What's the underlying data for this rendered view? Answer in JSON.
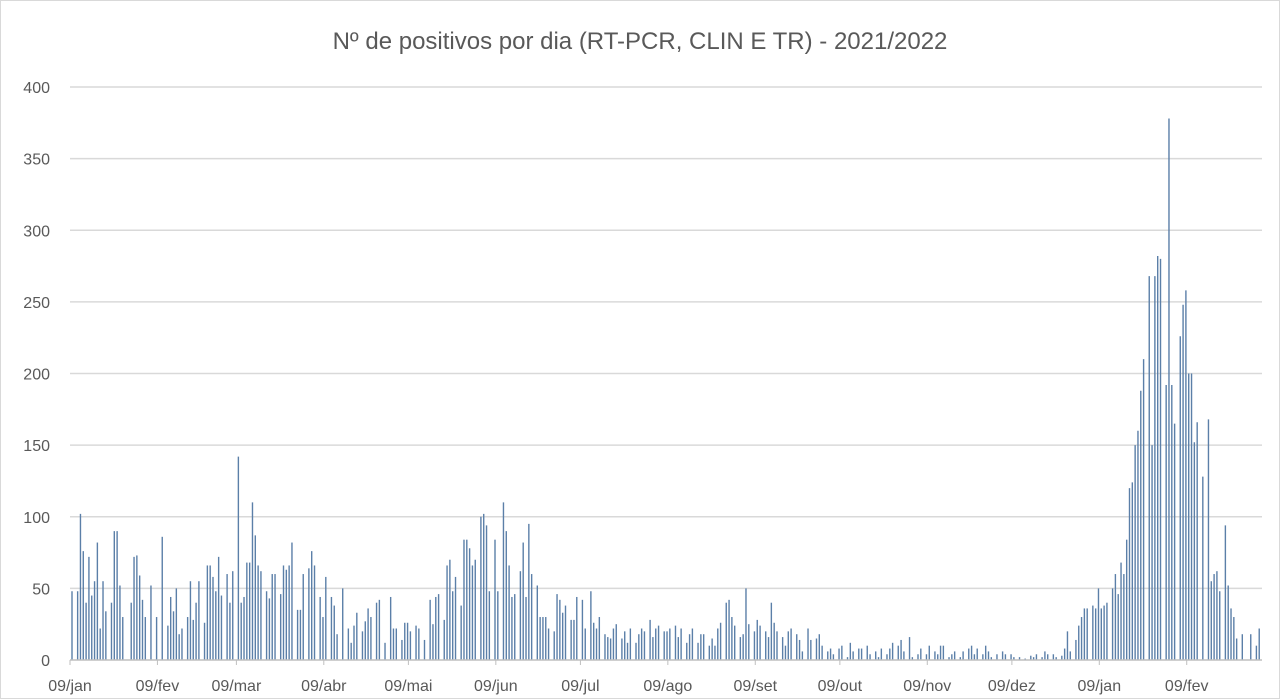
{
  "chart_data": {
    "type": "bar",
    "title": "Nº de positivos por dia (RT-PCR, CLIN E TR) - 2021/2022",
    "xlabel": "",
    "ylabel": "",
    "ylim": [
      0,
      400
    ],
    "yticks": [
      0,
      50,
      100,
      150,
      200,
      250,
      300,
      350,
      400
    ],
    "xtick_labels": [
      "09/jan",
      "09/fev",
      "09/mar",
      "09/abr",
      "09/mai",
      "09/jun",
      "09/jul",
      "09/ago",
      "09/set",
      "09/out",
      "09/nov",
      "09/dez",
      "09/jan",
      "09/fev"
    ],
    "grid": true,
    "legend": "none",
    "bar_color": "#5b7fa8",
    "values": [
      48,
      0,
      48,
      102,
      76,
      40,
      72,
      45,
      55,
      82,
      22,
      55,
      34,
      0,
      40,
      90,
      90,
      52,
      30,
      0,
      0,
      40,
      72,
      73,
      59,
      42,
      30,
      0,
      52,
      0,
      30,
      0,
      86,
      0,
      24,
      44,
      34,
      50,
      18,
      22,
      0,
      30,
      55,
      28,
      40,
      55,
      0,
      26,
      66,
      66,
      58,
      48,
      72,
      45,
      0,
      60,
      40,
      62,
      0,
      142,
      40,
      44,
      68,
      68,
      110,
      87,
      66,
      62,
      0,
      48,
      43,
      60,
      60,
      0,
      46,
      66,
      63,
      66,
      82,
      0,
      35,
      35,
      60,
      0,
      64,
      76,
      66,
      0,
      44,
      30,
      58,
      0,
      44,
      38,
      18,
      0,
      50,
      0,
      22,
      12,
      24,
      33,
      0,
      20,
      27,
      36,
      30,
      0,
      40,
      42,
      0,
      12,
      0,
      44,
      22,
      22,
      0,
      14,
      26,
      26,
      20,
      0,
      24,
      22,
      0,
      14,
      0,
      42,
      25,
      44,
      46,
      0,
      28,
      66,
      70,
      48,
      58,
      0,
      38,
      84,
      84,
      78,
      66,
      70,
      0,
      100,
      102,
      94,
      48,
      0,
      84,
      48,
      0,
      110,
      90,
      66,
      44,
      46,
      0,
      62,
      82,
      44,
      95,
      60,
      0,
      52,
      30,
      30,
      30,
      22,
      0,
      20,
      46,
      42,
      33,
      38,
      0,
      28,
      28,
      44,
      0,
      42,
      22,
      0,
      48,
      26,
      22,
      30,
      0,
      18,
      16,
      15,
      22,
      25,
      0,
      15,
      20,
      12,
      22,
      0,
      12,
      18,
      22,
      20,
      0,
      28,
      16,
      22,
      24,
      0,
      20,
      20,
      22,
      0,
      24,
      16,
      22,
      0,
      12,
      18,
      22,
      0,
      12,
      18,
      18,
      0,
      10,
      15,
      10,
      22,
      26,
      0,
      40,
      42,
      30,
      24,
      0,
      16,
      18,
      50,
      25,
      0,
      20,
      28,
      24,
      0,
      20,
      16,
      40,
      26,
      20,
      0,
      16,
      10,
      20,
      22,
      0,
      18,
      14,
      6,
      0,
      22,
      14,
      0,
      15,
      18,
      10,
      0,
      6,
      8,
      4,
      0,
      8,
      10,
      0,
      2,
      12,
      6,
      0,
      8,
      8,
      0,
      10,
      4,
      0,
      6,
      2,
      8,
      0,
      4,
      8,
      12,
      0,
      10,
      14,
      6,
      0,
      16,
      2,
      0,
      4,
      8,
      0,
      4,
      10,
      0,
      6,
      4,
      10,
      10,
      0,
      2,
      4,
      6,
      0,
      2,
      6,
      0,
      8,
      10,
      4,
      8,
      0,
      4,
      10,
      6,
      2,
      0,
      4,
      0,
      6,
      4,
      0,
      4,
      2,
      0,
      2,
      0,
      1,
      0,
      3,
      2,
      4,
      0,
      2,
      6,
      4,
      0,
      4,
      2,
      0,
      3,
      8,
      20,
      6,
      0,
      14,
      24,
      30,
      36,
      36,
      0,
      38,
      36,
      50,
      36,
      38,
      40,
      0,
      50,
      60,
      46,
      68,
      60,
      84,
      120,
      124,
      150,
      160,
      188,
      210,
      0,
      268,
      150,
      268,
      282,
      280,
      0,
      192,
      378,
      192,
      165,
      0,
      226,
      248,
      258,
      200,
      200,
      152,
      166,
      0,
      128,
      0,
      168,
      55,
      60,
      62,
      48,
      0,
      94,
      52,
      36,
      30,
      15,
      0,
      18,
      0,
      0,
      18,
      0,
      10,
      22
    ]
  }
}
